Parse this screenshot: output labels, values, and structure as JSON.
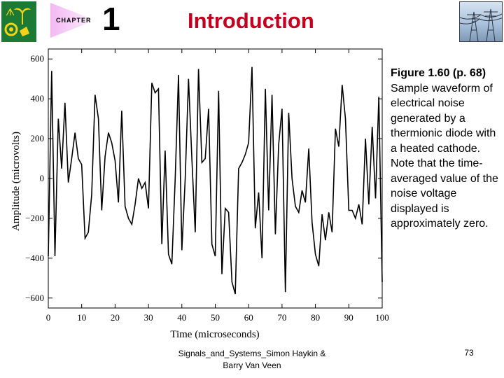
{
  "header": {
    "chapter_label": "CHAPTER",
    "chapter_number": "1",
    "title": "Introduction"
  },
  "caption": {
    "figure": "Figure 1.60 (p. 68)",
    "text": "Sample waveform of electrical noise generated by a thermionic diode with a heated cathode.  Note that the time-averaged value of the noise voltage displayed is approximately zero."
  },
  "footer": {
    "source": "Signals_and_Systems_Simon Haykin & Barry Van Veen",
    "page": "73"
  },
  "chart_data": {
    "type": "line",
    "title": "",
    "xlabel": "Time (microseconds)",
    "ylabel": "Amplitude (microvolts)",
    "xlim": [
      0,
      100
    ],
    "ylim": [
      -650,
      650
    ],
    "xticks": [
      0,
      10,
      20,
      30,
      40,
      50,
      60,
      70,
      80,
      90,
      100
    ],
    "yticks": [
      -600,
      -400,
      -200,
      0,
      200,
      400,
      600
    ],
    "grid": false,
    "series": [
      {
        "x": [
          0,
          1,
          2,
          3,
          4,
          5,
          6,
          7,
          8,
          9,
          10,
          11,
          12,
          13,
          14,
          15,
          16,
          17,
          18,
          19,
          20,
          21,
          22,
          23,
          24,
          25,
          26,
          27,
          28,
          29,
          30,
          31,
          32,
          33,
          34,
          35,
          36,
          37,
          38,
          39,
          40,
          41,
          42,
          43,
          44,
          45,
          46,
          47,
          48,
          49,
          50,
          51,
          52,
          53,
          54,
          55,
          56,
          57,
          58,
          59,
          60,
          61,
          62,
          63,
          64,
          65,
          66,
          67,
          68,
          69,
          70,
          71,
          72,
          73,
          74,
          75,
          76,
          77,
          78,
          79,
          80,
          81,
          82,
          83,
          84,
          85,
          86,
          87,
          88,
          89,
          90,
          91,
          92,
          93,
          94,
          95,
          96,
          97,
          98,
          99,
          100
        ],
        "values": [
          -390,
          540,
          -390,
          300,
          50,
          380,
          -20,
          100,
          230,
          100,
          70,
          -300,
          -270,
          -80,
          420,
          300,
          -160,
          110,
          230,
          180,
          90,
          -120,
          340,
          -140,
          -200,
          -230,
          -130,
          0,
          -50,
          -20,
          -150,
          480,
          430,
          450,
          -330,
          140,
          -380,
          -430,
          0,
          520,
          -360,
          0,
          500,
          100,
          -270,
          550,
          80,
          100,
          350,
          -330,
          -390,
          440,
          -480,
          -150,
          -170,
          -520,
          -580,
          50,
          80,
          120,
          180,
          560,
          -250,
          -70,
          -400,
          450,
          -160,
          420,
          -280,
          170,
          350,
          -570,
          330,
          0,
          -140,
          -170,
          -60,
          -120,
          150,
          -220,
          -380,
          -440,
          -180,
          -310,
          -170,
          -270,
          250,
          160,
          470,
          300,
          -160,
          -160,
          -200,
          -130,
          -230,
          200,
          -130,
          260,
          -100,
          410,
          -520
        ]
      }
    ]
  }
}
